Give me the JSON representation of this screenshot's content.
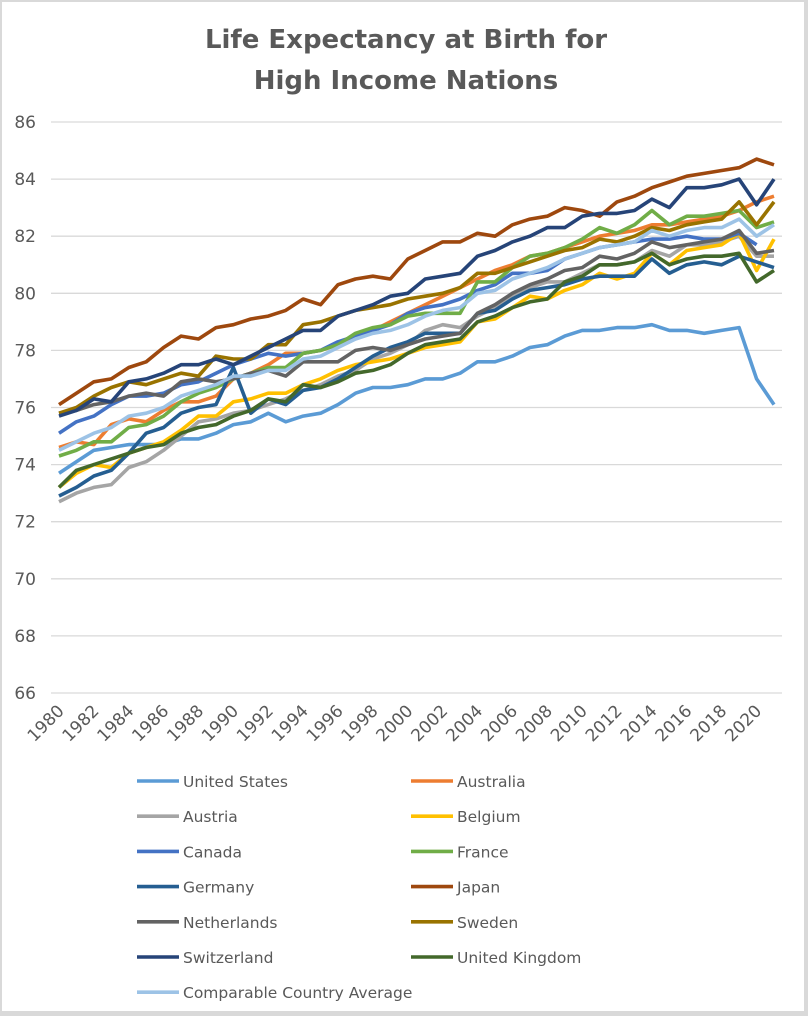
{
  "chart_data": {
    "type": "line",
    "title": "Life Expectancy at Birth for High Income Nations",
    "title_lines": [
      "Life Expectancy at Birth for",
      "High Income Nations"
    ],
    "xlabel": "",
    "ylabel": "",
    "ylim": [
      66,
      86
    ],
    "yticks": [
      66,
      68,
      70,
      72,
      74,
      76,
      78,
      80,
      82,
      84,
      86
    ],
    "xticks": [
      "1980",
      "1982",
      "1984",
      "1986",
      "1988",
      "1990",
      "1992",
      "1994",
      "1996",
      "1998",
      "2000",
      "2002",
      "2004",
      "2006",
      "2008",
      "2010",
      "2012",
      "2014",
      "2016",
      "2018",
      "2020"
    ],
    "x": [
      1980,
      1981,
      1982,
      1983,
      1984,
      1985,
      1986,
      1987,
      1988,
      1989,
      1990,
      1991,
      1992,
      1993,
      1994,
      1995,
      1996,
      1997,
      1998,
      1999,
      2000,
      2001,
      2002,
      2003,
      2004,
      2005,
      2006,
      2007,
      2008,
      2009,
      2010,
      2011,
      2012,
      2013,
      2014,
      2015,
      2016,
      2017,
      2018,
      2019,
      2020,
      2021
    ],
    "grid": true,
    "legend_position": "bottom",
    "series": [
      {
        "name": "United States",
        "color": "#5b9bd5",
        "values": [
          73.7,
          74.1,
          74.5,
          74.6,
          74.7,
          74.7,
          74.7,
          74.9,
          74.9,
          75.1,
          75.4,
          75.5,
          75.8,
          75.5,
          75.7,
          75.8,
          76.1,
          76.5,
          76.7,
          76.7,
          76.8,
          77.0,
          77.0,
          77.2,
          77.6,
          77.6,
          77.8,
          78.1,
          78.2,
          78.5,
          78.7,
          78.7,
          78.8,
          78.8,
          78.9,
          78.7,
          78.7,
          78.6,
          78.7,
          78.8,
          77.0,
          76.1
        ]
      },
      {
        "name": "Australia",
        "color": "#ed7d31",
        "values": [
          74.6,
          74.8,
          74.7,
          75.4,
          75.6,
          75.5,
          75.9,
          76.2,
          76.2,
          76.4,
          77.0,
          77.2,
          77.5,
          77.9,
          77.9,
          78.0,
          78.2,
          78.5,
          78.7,
          79.0,
          79.3,
          79.6,
          79.9,
          80.2,
          80.5,
          80.8,
          81.0,
          81.3,
          81.4,
          81.6,
          81.8,
          82.0,
          82.1,
          82.2,
          82.4,
          82.4,
          82.5,
          82.6,
          82.7,
          82.9,
          83.2,
          83.4
        ]
      },
      {
        "name": "Austria",
        "color": "#a5a5a5",
        "values": [
          72.7,
          73.0,
          73.2,
          73.3,
          73.9,
          74.1,
          74.5,
          75.0,
          75.5,
          75.6,
          75.8,
          75.9,
          76.1,
          76.3,
          76.6,
          76.8,
          77.1,
          77.3,
          77.7,
          77.9,
          78.2,
          78.7,
          78.9,
          78.8,
          79.2,
          79.5,
          79.9,
          80.2,
          80.4,
          80.4,
          80.7,
          81.0,
          81.0,
          81.1,
          81.5,
          81.3,
          81.7,
          81.7,
          81.8,
          82.0,
          81.3,
          81.3
        ]
      },
      {
        "name": "Belgium",
        "color": "#ffc000",
        "values": [
          73.2,
          73.7,
          74.0,
          73.9,
          74.4,
          74.6,
          74.8,
          75.2,
          75.7,
          75.7,
          76.2,
          76.3,
          76.5,
          76.5,
          76.8,
          77.0,
          77.3,
          77.5,
          77.6,
          77.7,
          77.9,
          78.1,
          78.2,
          78.3,
          79.0,
          79.1,
          79.5,
          79.9,
          79.8,
          80.1,
          80.3,
          80.7,
          80.5,
          80.7,
          81.4,
          81.0,
          81.5,
          81.6,
          81.7,
          82.1,
          80.8,
          81.9
        ]
      },
      {
        "name": "Canada",
        "color": "#4472c4",
        "values": [
          75.1,
          75.5,
          75.7,
          76.1,
          76.4,
          76.4,
          76.5,
          76.8,
          76.9,
          77.2,
          77.5,
          77.7,
          77.9,
          77.8,
          77.9,
          78.0,
          78.3,
          78.5,
          78.7,
          78.9,
          79.3,
          79.5,
          79.6,
          79.8,
          80.1,
          80.3,
          80.7,
          80.7,
          80.8,
          81.2,
          81.4,
          81.6,
          81.7,
          81.8,
          81.9,
          81.9,
          82.0,
          81.9,
          81.9,
          82.1,
          81.7,
          null
        ]
      },
      {
        "name": "France",
        "color": "#70ad47",
        "values": [
          74.3,
          74.5,
          74.8,
          74.8,
          75.3,
          75.4,
          75.7,
          76.2,
          76.5,
          76.7,
          77.0,
          77.2,
          77.4,
          77.4,
          77.9,
          78.0,
          78.2,
          78.6,
          78.8,
          78.9,
          79.2,
          79.3,
          79.3,
          79.3,
          80.4,
          80.4,
          80.9,
          81.3,
          81.4,
          81.6,
          81.9,
          82.3,
          82.1,
          82.4,
          82.9,
          82.4,
          82.7,
          82.7,
          82.8,
          82.9,
          82.3,
          82.5
        ]
      },
      {
        "name": "Germany",
        "color": "#255e91",
        "values": [
          72.9,
          73.2,
          73.6,
          73.8,
          74.4,
          75.1,
          75.3,
          75.8,
          76.0,
          76.1,
          77.4,
          75.8,
          76.3,
          76.1,
          76.6,
          76.7,
          77.0,
          77.4,
          77.8,
          78.1,
          78.3,
          78.6,
          78.6,
          78.6,
          79.3,
          79.4,
          79.8,
          80.1,
          80.2,
          80.3,
          80.5,
          80.6,
          80.6,
          80.6,
          81.2,
          80.7,
          81.0,
          81.1,
          81.0,
          81.3,
          81.1,
          80.9
        ]
      },
      {
        "name": "Japan",
        "color": "#9e480e",
        "values": [
          76.1,
          76.5,
          76.9,
          77.0,
          77.4,
          77.6,
          78.1,
          78.5,
          78.4,
          78.8,
          78.9,
          79.1,
          79.2,
          79.4,
          79.8,
          79.6,
          80.3,
          80.5,
          80.6,
          80.5,
          81.2,
          81.5,
          81.8,
          81.8,
          82.1,
          82.0,
          82.4,
          82.6,
          82.7,
          83.0,
          82.9,
          82.7,
          83.2,
          83.4,
          83.7,
          83.9,
          84.1,
          84.2,
          84.3,
          84.4,
          84.7,
          84.5
        ]
      },
      {
        "name": "Netherlands",
        "color": "#636363",
        "values": [
          75.8,
          75.9,
          76.1,
          76.2,
          76.4,
          76.5,
          76.4,
          76.9,
          77.0,
          76.9,
          77.0,
          77.2,
          77.3,
          77.1,
          77.6,
          77.6,
          77.6,
          78.0,
          78.1,
          78.0,
          78.2,
          78.4,
          78.5,
          78.6,
          79.3,
          79.6,
          80.0,
          80.3,
          80.5,
          80.8,
          80.9,
          81.3,
          81.2,
          81.4,
          81.8,
          81.6,
          81.7,
          81.8,
          81.9,
          82.2,
          81.4,
          81.5
        ]
      },
      {
        "name": "Sweden",
        "color": "#997300",
        "values": [
          75.8,
          76.0,
          76.4,
          76.7,
          76.9,
          76.8,
          77.0,
          77.2,
          77.1,
          77.8,
          77.7,
          77.7,
          78.2,
          78.2,
          78.9,
          79.0,
          79.2,
          79.4,
          79.5,
          79.6,
          79.8,
          79.9,
          80.0,
          80.2,
          80.7,
          80.7,
          80.9,
          81.1,
          81.3,
          81.5,
          81.6,
          81.9,
          81.8,
          82.0,
          82.3,
          82.2,
          82.4,
          82.5,
          82.6,
          83.2,
          82.4,
          83.2
        ]
      },
      {
        "name": "Switzerland",
        "color": "#264478",
        "values": [
          75.7,
          75.9,
          76.3,
          76.2,
          76.9,
          77.0,
          77.2,
          77.5,
          77.5,
          77.7,
          77.5,
          77.8,
          78.1,
          78.4,
          78.7,
          78.7,
          79.2,
          79.4,
          79.6,
          79.9,
          80.0,
          80.5,
          80.6,
          80.7,
          81.3,
          81.5,
          81.8,
          82.0,
          82.3,
          82.3,
          82.7,
          82.8,
          82.8,
          82.9,
          83.3,
          83.0,
          83.7,
          83.7,
          83.8,
          84.0,
          83.1,
          84.0
        ]
      },
      {
        "name": "United Kingdom",
        "color": "#43682b",
        "values": [
          73.2,
          73.8,
          74.0,
          74.2,
          74.4,
          74.6,
          74.7,
          75.1,
          75.3,
          75.4,
          75.7,
          75.9,
          76.3,
          76.2,
          76.8,
          76.7,
          76.9,
          77.2,
          77.3,
          77.5,
          77.9,
          78.2,
          78.3,
          78.4,
          79.0,
          79.2,
          79.5,
          79.7,
          79.8,
          80.4,
          80.6,
          81.0,
          81.0,
          81.1,
          81.4,
          81.0,
          81.2,
          81.3,
          81.3,
          81.4,
          80.4,
          80.8
        ]
      },
      {
        "name": "Comparable Country Average",
        "color": "#9dc3e6",
        "values": [
          74.5,
          74.8,
          75.1,
          75.3,
          75.7,
          75.8,
          76.0,
          76.4,
          76.6,
          76.8,
          77.1,
          77.1,
          77.3,
          77.3,
          77.7,
          77.8,
          78.1,
          78.4,
          78.6,
          78.7,
          78.9,
          79.2,
          79.4,
          79.5,
          80.0,
          80.1,
          80.5,
          80.7,
          80.9,
          81.2,
          81.4,
          81.6,
          81.7,
          81.8,
          82.2,
          82.0,
          82.2,
          82.3,
          82.3,
          82.6,
          82.0,
          82.4
        ]
      }
    ]
  }
}
